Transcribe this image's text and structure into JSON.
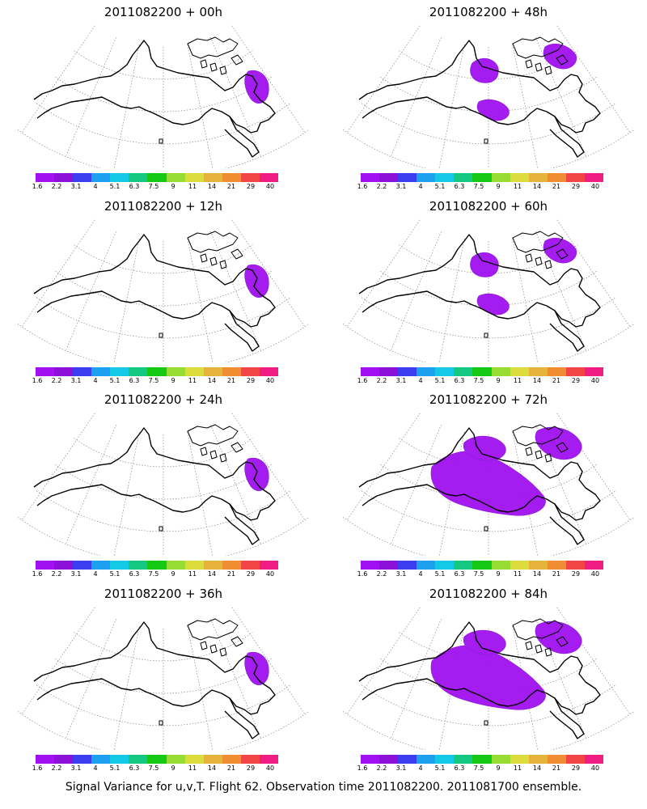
{
  "caption": "Signal Variance for u,v,T. Flight 62. Observation time 2011082200. 2011081700 ensemble.",
  "colorbar": {
    "ticks": [
      "1.6",
      "2.2",
      "3.1",
      "4",
      "5.1",
      "6.3",
      "7.5",
      "9",
      "11",
      "14",
      "21",
      "29",
      "40"
    ],
    "colors": [
      "#a010f0",
      "#8c10d8",
      "#3c3cf0",
      "#1ea0f0",
      "#14c8e6",
      "#14c882",
      "#14c814",
      "#96dc32",
      "#dcdc3c",
      "#e6b43c",
      "#f08c32",
      "#f04646",
      "#f01e82"
    ]
  },
  "panels": [
    {
      "title": "2011082200 + 00h",
      "column": "left",
      "row": 0,
      "signal": "low"
    },
    {
      "title": "2011082200 + 48h",
      "column": "right",
      "row": 0,
      "signal": "medium"
    },
    {
      "title": "2011082200 + 12h",
      "column": "left",
      "row": 1,
      "signal": "low"
    },
    {
      "title": "2011082200 + 60h",
      "column": "right",
      "row": 1,
      "signal": "medium"
    },
    {
      "title": "2011082200 + 24h",
      "column": "left",
      "row": 2,
      "signal": "low"
    },
    {
      "title": "2011082200 + 72h",
      "column": "right",
      "row": 2,
      "signal": "high"
    },
    {
      "title": "2011082200 + 36h",
      "column": "left",
      "row": 3,
      "signal": "low"
    },
    {
      "title": "2011082200 + 84h",
      "column": "right",
      "row": 3,
      "signal": "high"
    }
  ]
}
